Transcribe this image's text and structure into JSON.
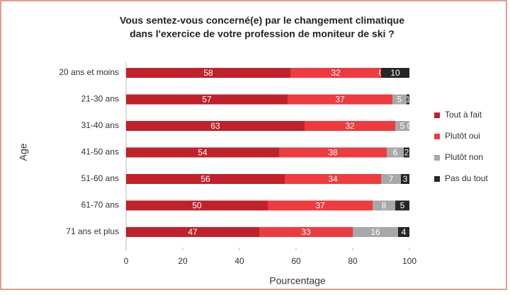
{
  "chart_data": {
    "type": "stacked-barh",
    "title": [
      "Vous sentez-vous concerné(e) par le changement climatique",
      "dans l'exercice de votre profession de moniteur de ski ?"
    ],
    "x_label": "Pourcentage",
    "y_label": "Age",
    "categories": [
      "20 ans et moins",
      "21-30 ans",
      "31-40 ans",
      "41-50 ans",
      "51-60 ans",
      "61-70 ans",
      "71 ans et plus"
    ],
    "series": [
      {
        "name": "Tout à fait",
        "color": "#c0212b",
        "values": [
          58,
          57,
          63,
          54,
          56,
          50,
          47
        ]
      },
      {
        "name": "Plutôt oui",
        "color": "#ee3b3f",
        "values": [
          32,
          37,
          32,
          38,
          34,
          37,
          33
        ]
      },
      {
        "name": "Plutôt non",
        "color": "#a8a8a8",
        "values": [
          0,
          5,
          5,
          6,
          7,
          8,
          16
        ]
      },
      {
        "name": "Pas du tout",
        "color": "#262626",
        "values": [
          10,
          1,
          0,
          2,
          3,
          5,
          4
        ]
      }
    ],
    "xlim": [
      0,
      100
    ],
    "xticks": [
      0,
      20,
      40,
      60,
      80,
      100
    ],
    "legend": "right"
  }
}
